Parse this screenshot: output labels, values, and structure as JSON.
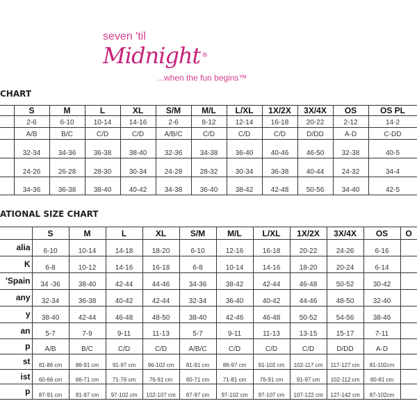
{
  "logo": {
    "line1": "seven 'til",
    "line2": "Midnight",
    "registered": "®",
    "tagline": "...when the fun begins™",
    "color": "#c8227a"
  },
  "size_chart": {
    "title": "CHART",
    "headers": [
      "S",
      "M",
      "L",
      "XL",
      "S/M",
      "M/L",
      "L/XL",
      "1X/2X",
      "3X/4X",
      "OS",
      "OS PL"
    ],
    "rows": [
      [
        "2-6",
        "6-10",
        "10-14",
        "14-16",
        "2-6",
        "8-12",
        "12-14",
        "16-18",
        "20-22",
        "2-12",
        "14-2"
      ],
      [
        "A/B",
        "B/C",
        "C/D",
        "C/D",
        "A/B/C",
        "C/D",
        "C/D",
        "C/D",
        "D/DD",
        "A-D",
        "C-DD"
      ],
      [
        "32-34",
        "34-36",
        "36-38",
        "38-40",
        "32-36",
        "34-38",
        "36-40",
        "40-46",
        "46-50",
        "32-38",
        "40-5"
      ],
      [
        "24-26",
        "26-28",
        "28-30",
        "30-34",
        "24-28",
        "28-32",
        "30-34",
        "36-38",
        "40-44",
        "24-32",
        "34-4"
      ],
      [
        "34-36",
        "36-38",
        "38-40",
        "40-42",
        "34-38",
        "36-40",
        "38-42",
        "42-48",
        "50-56",
        "34-40",
        "42-5"
      ]
    ]
  },
  "international_chart": {
    "title": "ATIONAL SIZE CHART",
    "headers": [
      "S",
      "M",
      "L",
      "XL",
      "S/M",
      "M/L",
      "L/XL",
      "1X/2X",
      "3X/4X",
      "OS",
      "O"
    ],
    "rows": [
      {
        "label": "alia",
        "cells": [
          "6-10",
          "10-14",
          "14-18",
          "18-20",
          "6-10",
          "12-16",
          "16-18",
          "20-22",
          "24-26",
          "6-16",
          ""
        ]
      },
      {
        "label": "K",
        "cells": [
          "6-8",
          "10-12",
          "14-16",
          "16-18",
          "6-8",
          "10-14",
          "14-16",
          "18-20",
          "20-24",
          "6-14",
          ""
        ]
      },
      {
        "label": "'Spain",
        "cells": [
          "34 -36",
          "38-40",
          "42-44",
          "44-46",
          "34-36",
          "38-42",
          "42-44",
          "46-48",
          "50-52",
          "30-42",
          ""
        ]
      },
      {
        "label": "any",
        "cells": [
          "32-34",
          "36-38",
          "40-42",
          "42-44",
          "32-34",
          "36-40",
          "40-42",
          "44-46",
          "48-50",
          "32-40",
          ""
        ]
      },
      {
        "label": "y",
        "cells": [
          "38-40",
          "42-44",
          "46-48",
          "48-50",
          "38-40",
          "42-46",
          "46-48",
          "50-52",
          "54-56",
          "38-46",
          ""
        ]
      },
      {
        "label": "an",
        "cells": [
          "5-7",
          "7-9",
          "9-11",
          "11-13",
          "5-7",
          "9-11",
          "11-13",
          "13-15",
          "15-17",
          "7-11",
          ""
        ]
      },
      {
        "label": "p",
        "cells": [
          "A/B",
          "B/C",
          "C/D",
          "C/D",
          "A/B/C",
          "C/D",
          "C/D",
          "C/D",
          "D/DD",
          "A-D",
          ""
        ]
      },
      {
        "label": "st",
        "cells": [
          "81-86 cm",
          "86-91 cm",
          "91-97 cm",
          "96-102 cm",
          "81-91 cm",
          "86-97 cm",
          "91-102 cm",
          "102-117 cm",
          "117-127 cm",
          "81-102cm",
          ""
        ]
      },
      {
        "label": "ist",
        "cells": [
          "60-66 cm",
          "66-71 cm",
          "71-76 cm",
          "76-91 cm",
          "60-71 cm",
          "71-81 cm",
          "76-91 cm",
          "91-97 cm",
          "102-112 cm",
          "60-81 cm",
          ""
        ]
      },
      {
        "label": "p",
        "cells": [
          "87-91 cm",
          "91-97 cm",
          "97-102 cm",
          "102-107 cm",
          "87-97 cm",
          "97-102 cm",
          "97-107 cm",
          "107-122 cm",
          "127-142 cm",
          "87-102cm",
          ""
        ]
      }
    ]
  }
}
